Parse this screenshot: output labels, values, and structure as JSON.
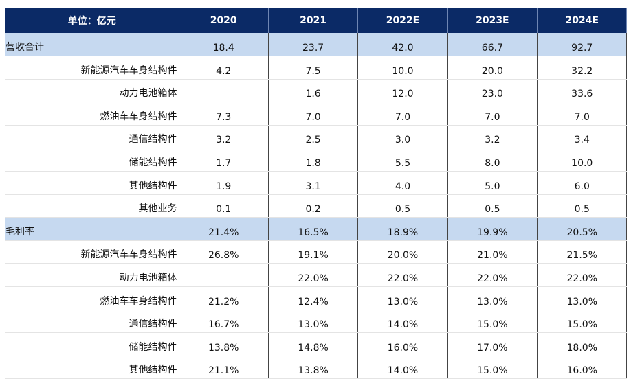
{
  "table": {
    "header": [
      "单位：亿元",
      "2020",
      "2021",
      "2022E",
      "2023E",
      "2024E"
    ],
    "sections": [
      {
        "label": "营收合计",
        "values": [
          "18.4",
          "23.7",
          "42.0",
          "66.7",
          "92.7"
        ],
        "items": [
          {
            "label": "新能源汽车车身结构件",
            "values": [
              "4.2",
              "7.5",
              "10.0",
              "20.0",
              "32.2"
            ]
          },
          {
            "label": "动力电池箱体",
            "values": [
              null,
              "1.6",
              "12.0",
              "23.0",
              "33.6"
            ]
          },
          {
            "label": "燃油车车身结构件",
            "values": [
              "7.3",
              "7.0",
              "7.0",
              "7.0",
              "7.0"
            ]
          },
          {
            "label": "通信结构件",
            "values": [
              "3.2",
              "2.5",
              "3.0",
              "3.2",
              "3.4"
            ]
          },
          {
            "label": "储能结构件",
            "values": [
              "1.7",
              "1.8",
              "5.5",
              "8.0",
              "10.0"
            ]
          },
          {
            "label": "其他结构件",
            "values": [
              "1.9",
              "3.1",
              "4.0",
              "5.0",
              "6.0"
            ]
          },
          {
            "label": "其他业务",
            "values": [
              "0.1",
              "0.2",
              "0.5",
              "0.5",
              "0.5"
            ]
          }
        ]
      },
      {
        "label": "毛利率",
        "values": [
          "21.4%",
          "16.5%",
          "18.9%",
          "19.9%",
          "20.5%"
        ],
        "items": [
          {
            "label": "新能源汽车车身结构件",
            "values": [
              "26.8%",
              "19.1%",
              "20.0%",
              "21.0%",
              "21.5%"
            ]
          },
          {
            "label": "动力电池箱体",
            "values": [
              null,
              "22.0%",
              "22.0%",
              "22.0%",
              "22.0%"
            ]
          },
          {
            "label": "燃油车车身结构件",
            "values": [
              "21.2%",
              "12.4%",
              "13.0%",
              "13.0%",
              "13.0%"
            ]
          },
          {
            "label": "通信结构件",
            "values": [
              "16.7%",
              "13.0%",
              "14.0%",
              "15.0%",
              "15.0%"
            ]
          },
          {
            "label": "储能结构件",
            "values": [
              "13.8%",
              "14.8%",
              "16.0%",
              "17.0%",
              "18.0%"
            ]
          },
          {
            "label": "其他结构件",
            "values": [
              "21.1%",
              "13.8%",
              "14.0%",
              "15.0%",
              "16.0%"
            ]
          }
        ]
      }
    ]
  }
}
